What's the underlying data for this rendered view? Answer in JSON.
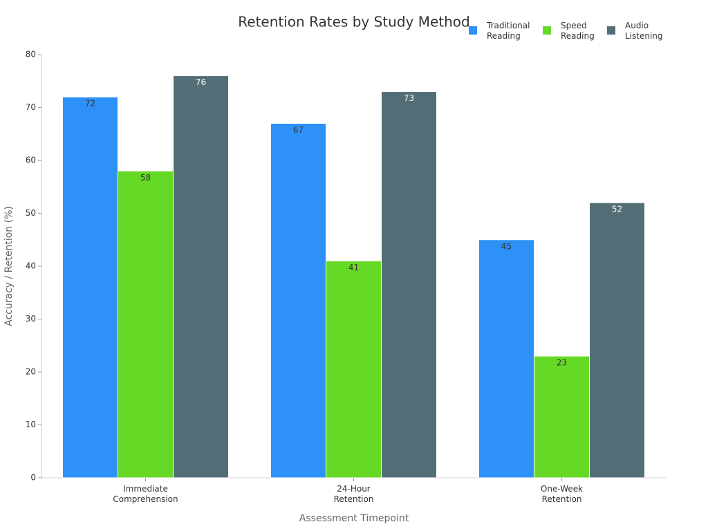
{
  "chart_data": {
    "type": "bar",
    "title": "Retention Rates by Study Method",
    "x_label": "Assessment Timepoint",
    "y_label": "Accuracy / Retention (%)",
    "categories": [
      "Immediate Comprehension",
      "24-Hour Retention",
      "One-Week Retention"
    ],
    "series": [
      {
        "name": "Traditional Reading",
        "color": "#2e91f7",
        "values": [
          72,
          67,
          45
        ]
      },
      {
        "name": "Speed Reading",
        "color": "#66d927",
        "values": [
          58,
          41,
          23
        ]
      },
      {
        "name": "Audio Listening",
        "color": "#546e77",
        "values": [
          76,
          73,
          52
        ]
      }
    ],
    "ylim": [
      0,
      80
    ],
    "yticks": [
      0,
      10,
      20,
      30,
      40,
      50,
      60,
      70,
      80
    ],
    "grid": false
  }
}
